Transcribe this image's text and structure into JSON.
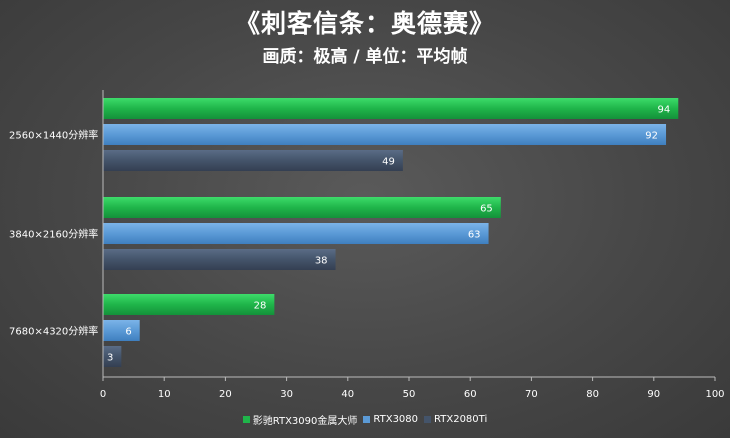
{
  "chart_data": {
    "type": "bar",
    "orientation": "horizontal",
    "title": "《刺客信条：奥德赛》",
    "subtitle": "画质：极高 / 单位：平均帧",
    "categories": [
      "2560×1440分辨率",
      "3840×2160分辨率",
      "7680×4320分辨率"
    ],
    "series": [
      {
        "name": "影驰RTX3090金属大师",
        "color": "#1fb54a",
        "values": [
          94,
          65,
          28
        ]
      },
      {
        "name": "RTX3080",
        "color": "#5b9ad6",
        "values": [
          92,
          63,
          6
        ]
      },
      {
        "name": "RTX2080Ti",
        "color": "#44546a",
        "values": [
          49,
          38,
          3
        ]
      }
    ],
    "xlim": [
      0,
      100
    ],
    "xticks": [
      "0",
      "10",
      "20",
      "30",
      "40",
      "50",
      "60",
      "70",
      "80",
      "90",
      "100"
    ],
    "legend_position": "bottom",
    "grid": false
  }
}
